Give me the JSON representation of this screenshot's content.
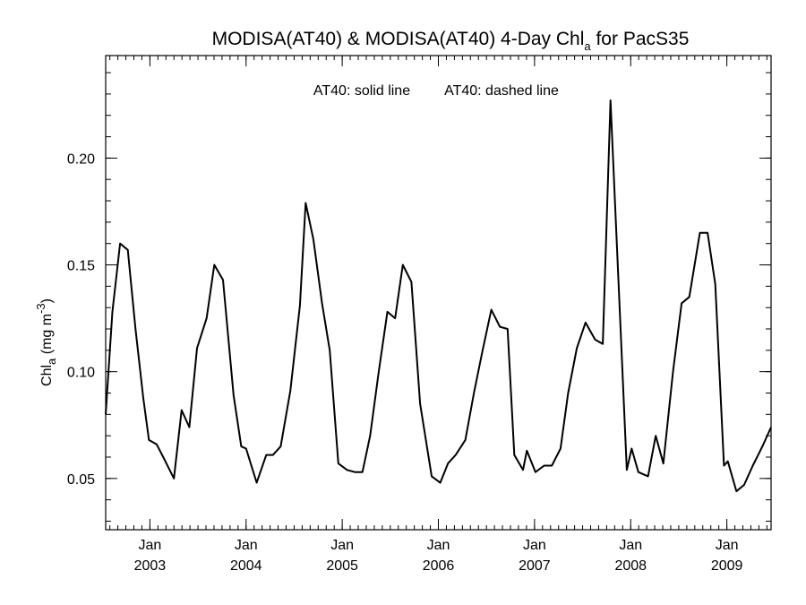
{
  "chart_data": {
    "type": "line",
    "title": {
      "main": "MODISA(AT40) & MODISA(AT40) 4-Day Chl",
      "subscript": "a",
      "suffix": " for PacS35"
    },
    "ylabel": {
      "base": "Chl",
      "subscript": "a",
      "middle": " (mg m",
      "superscript": "-3",
      "end": ")"
    },
    "annotations": [
      "AT40: solid line",
      "AT40: dashed line"
    ],
    "x_unit": "decimal year",
    "xlim": [
      2002.54,
      2009.46
    ],
    "ylim": [
      0.026,
      0.248
    ],
    "y_ticks": [
      0.05,
      0.1,
      0.15,
      0.2
    ],
    "y_tick_labels": [
      "0.05",
      "0.10",
      "0.15",
      "0.20"
    ],
    "y_minor_step": 0.01,
    "x_ticks": [
      2003.0,
      2004.0,
      2005.0,
      2006.0,
      2007.0,
      2008.0,
      2009.0
    ],
    "x_tick_labels": [
      {
        "month": "Jan",
        "year": "2003"
      },
      {
        "month": "Jan",
        "year": "2004"
      },
      {
        "month": "Jan",
        "year": "2005"
      },
      {
        "month": "Jan",
        "year": "2006"
      },
      {
        "month": "Jan",
        "year": "2007"
      },
      {
        "month": "Jan",
        "year": "2008"
      },
      {
        "month": "Jan",
        "year": "2009"
      }
    ],
    "x_minor_step": 0.0833333,
    "grid": false,
    "series": [
      {
        "style": "solid",
        "color": "#000000",
        "points": [
          [
            2002.54,
            0.08
          ],
          [
            2002.61,
            0.128
          ],
          [
            2002.69,
            0.16
          ],
          [
            2002.77,
            0.157
          ],
          [
            2002.85,
            0.12
          ],
          [
            2002.93,
            0.088
          ],
          [
            2002.99,
            0.068
          ],
          [
            2003.07,
            0.066
          ],
          [
            2003.15,
            0.059
          ],
          [
            2003.25,
            0.05
          ],
          [
            2003.33,
            0.082
          ],
          [
            2003.41,
            0.074
          ],
          [
            2003.49,
            0.111
          ],
          [
            2003.59,
            0.125
          ],
          [
            2003.67,
            0.15
          ],
          [
            2003.76,
            0.143
          ],
          [
            2003.87,
            0.089
          ],
          [
            2003.95,
            0.065
          ],
          [
            2004.0,
            0.064
          ],
          [
            2004.11,
            0.048
          ],
          [
            2004.21,
            0.061
          ],
          [
            2004.28,
            0.061
          ],
          [
            2004.36,
            0.065
          ],
          [
            2004.46,
            0.091
          ],
          [
            2004.56,
            0.131
          ],
          [
            2004.62,
            0.179
          ],
          [
            2004.7,
            0.162
          ],
          [
            2004.79,
            0.132
          ],
          [
            2004.87,
            0.11
          ],
          [
            2004.96,
            0.057
          ],
          [
            2005.05,
            0.054
          ],
          [
            2005.13,
            0.053
          ],
          [
            2005.21,
            0.053
          ],
          [
            2005.29,
            0.07
          ],
          [
            2005.38,
            0.1
          ],
          [
            2005.47,
            0.128
          ],
          [
            2005.55,
            0.125
          ],
          [
            2005.63,
            0.15
          ],
          [
            2005.72,
            0.142
          ],
          [
            2005.81,
            0.085
          ],
          [
            2005.93,
            0.051
          ],
          [
            2006.02,
            0.048
          ],
          [
            2006.1,
            0.057
          ],
          [
            2006.18,
            0.061
          ],
          [
            2006.28,
            0.068
          ],
          [
            2006.37,
            0.09
          ],
          [
            2006.46,
            0.11
          ],
          [
            2006.55,
            0.129
          ],
          [
            2006.64,
            0.121
          ],
          [
            2006.72,
            0.12
          ],
          [
            2006.79,
            0.061
          ],
          [
            2006.88,
            0.054
          ],
          [
            2006.92,
            0.063
          ],
          [
            2007.01,
            0.053
          ],
          [
            2007.1,
            0.056
          ],
          [
            2007.18,
            0.056
          ],
          [
            2007.27,
            0.064
          ],
          [
            2007.35,
            0.09
          ],
          [
            2007.44,
            0.111
          ],
          [
            2007.53,
            0.123
          ],
          [
            2007.63,
            0.115
          ],
          [
            2007.71,
            0.113
          ],
          [
            2007.79,
            0.227
          ],
          [
            2007.96,
            0.054
          ],
          [
            2008.01,
            0.064
          ],
          [
            2008.08,
            0.053
          ],
          [
            2008.18,
            0.051
          ],
          [
            2008.26,
            0.07
          ],
          [
            2008.34,
            0.057
          ],
          [
            2008.44,
            0.1
          ],
          [
            2008.53,
            0.132
          ],
          [
            2008.61,
            0.135
          ],
          [
            2008.72,
            0.165
          ],
          [
            2008.8,
            0.165
          ],
          [
            2008.88,
            0.141
          ],
          [
            2008.97,
            0.056
          ],
          [
            2009.01,
            0.058
          ],
          [
            2009.1,
            0.044
          ],
          [
            2009.18,
            0.047
          ],
          [
            2009.27,
            0.056
          ],
          [
            2009.37,
            0.065
          ],
          [
            2009.46,
            0.074
          ]
        ]
      }
    ]
  }
}
